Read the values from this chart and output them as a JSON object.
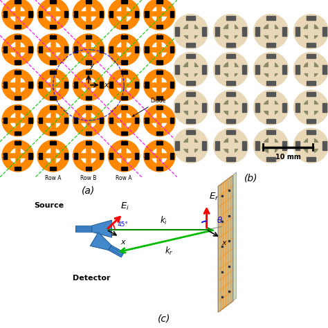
{
  "panel_a_label": "(a)",
  "panel_b_label": "(b)",
  "panel_c_label": "(c)",
  "orange": "#FF8800",
  "orange_bg": "#FF8800",
  "tan_bg": "#B8975A",
  "tan_light": "#D4B882",
  "cream": "#E8D8B8",
  "silver": "#C8C8C8",
  "dark_gray": "#444444",
  "blue_horn": "#4488CC",
  "blue_dark": "#1A5A99",
  "blue_mid": "#2266AA",
  "green_arrow": "#00BB00",
  "red_arrow": "#DD0000",
  "black": "#000000",
  "pink_dashed": "#FF00FF",
  "green_dashed": "#00CC00",
  "blue_dashed": "#0000FF",
  "white": "#FFFFFF",
  "scale_label": "10 mm"
}
